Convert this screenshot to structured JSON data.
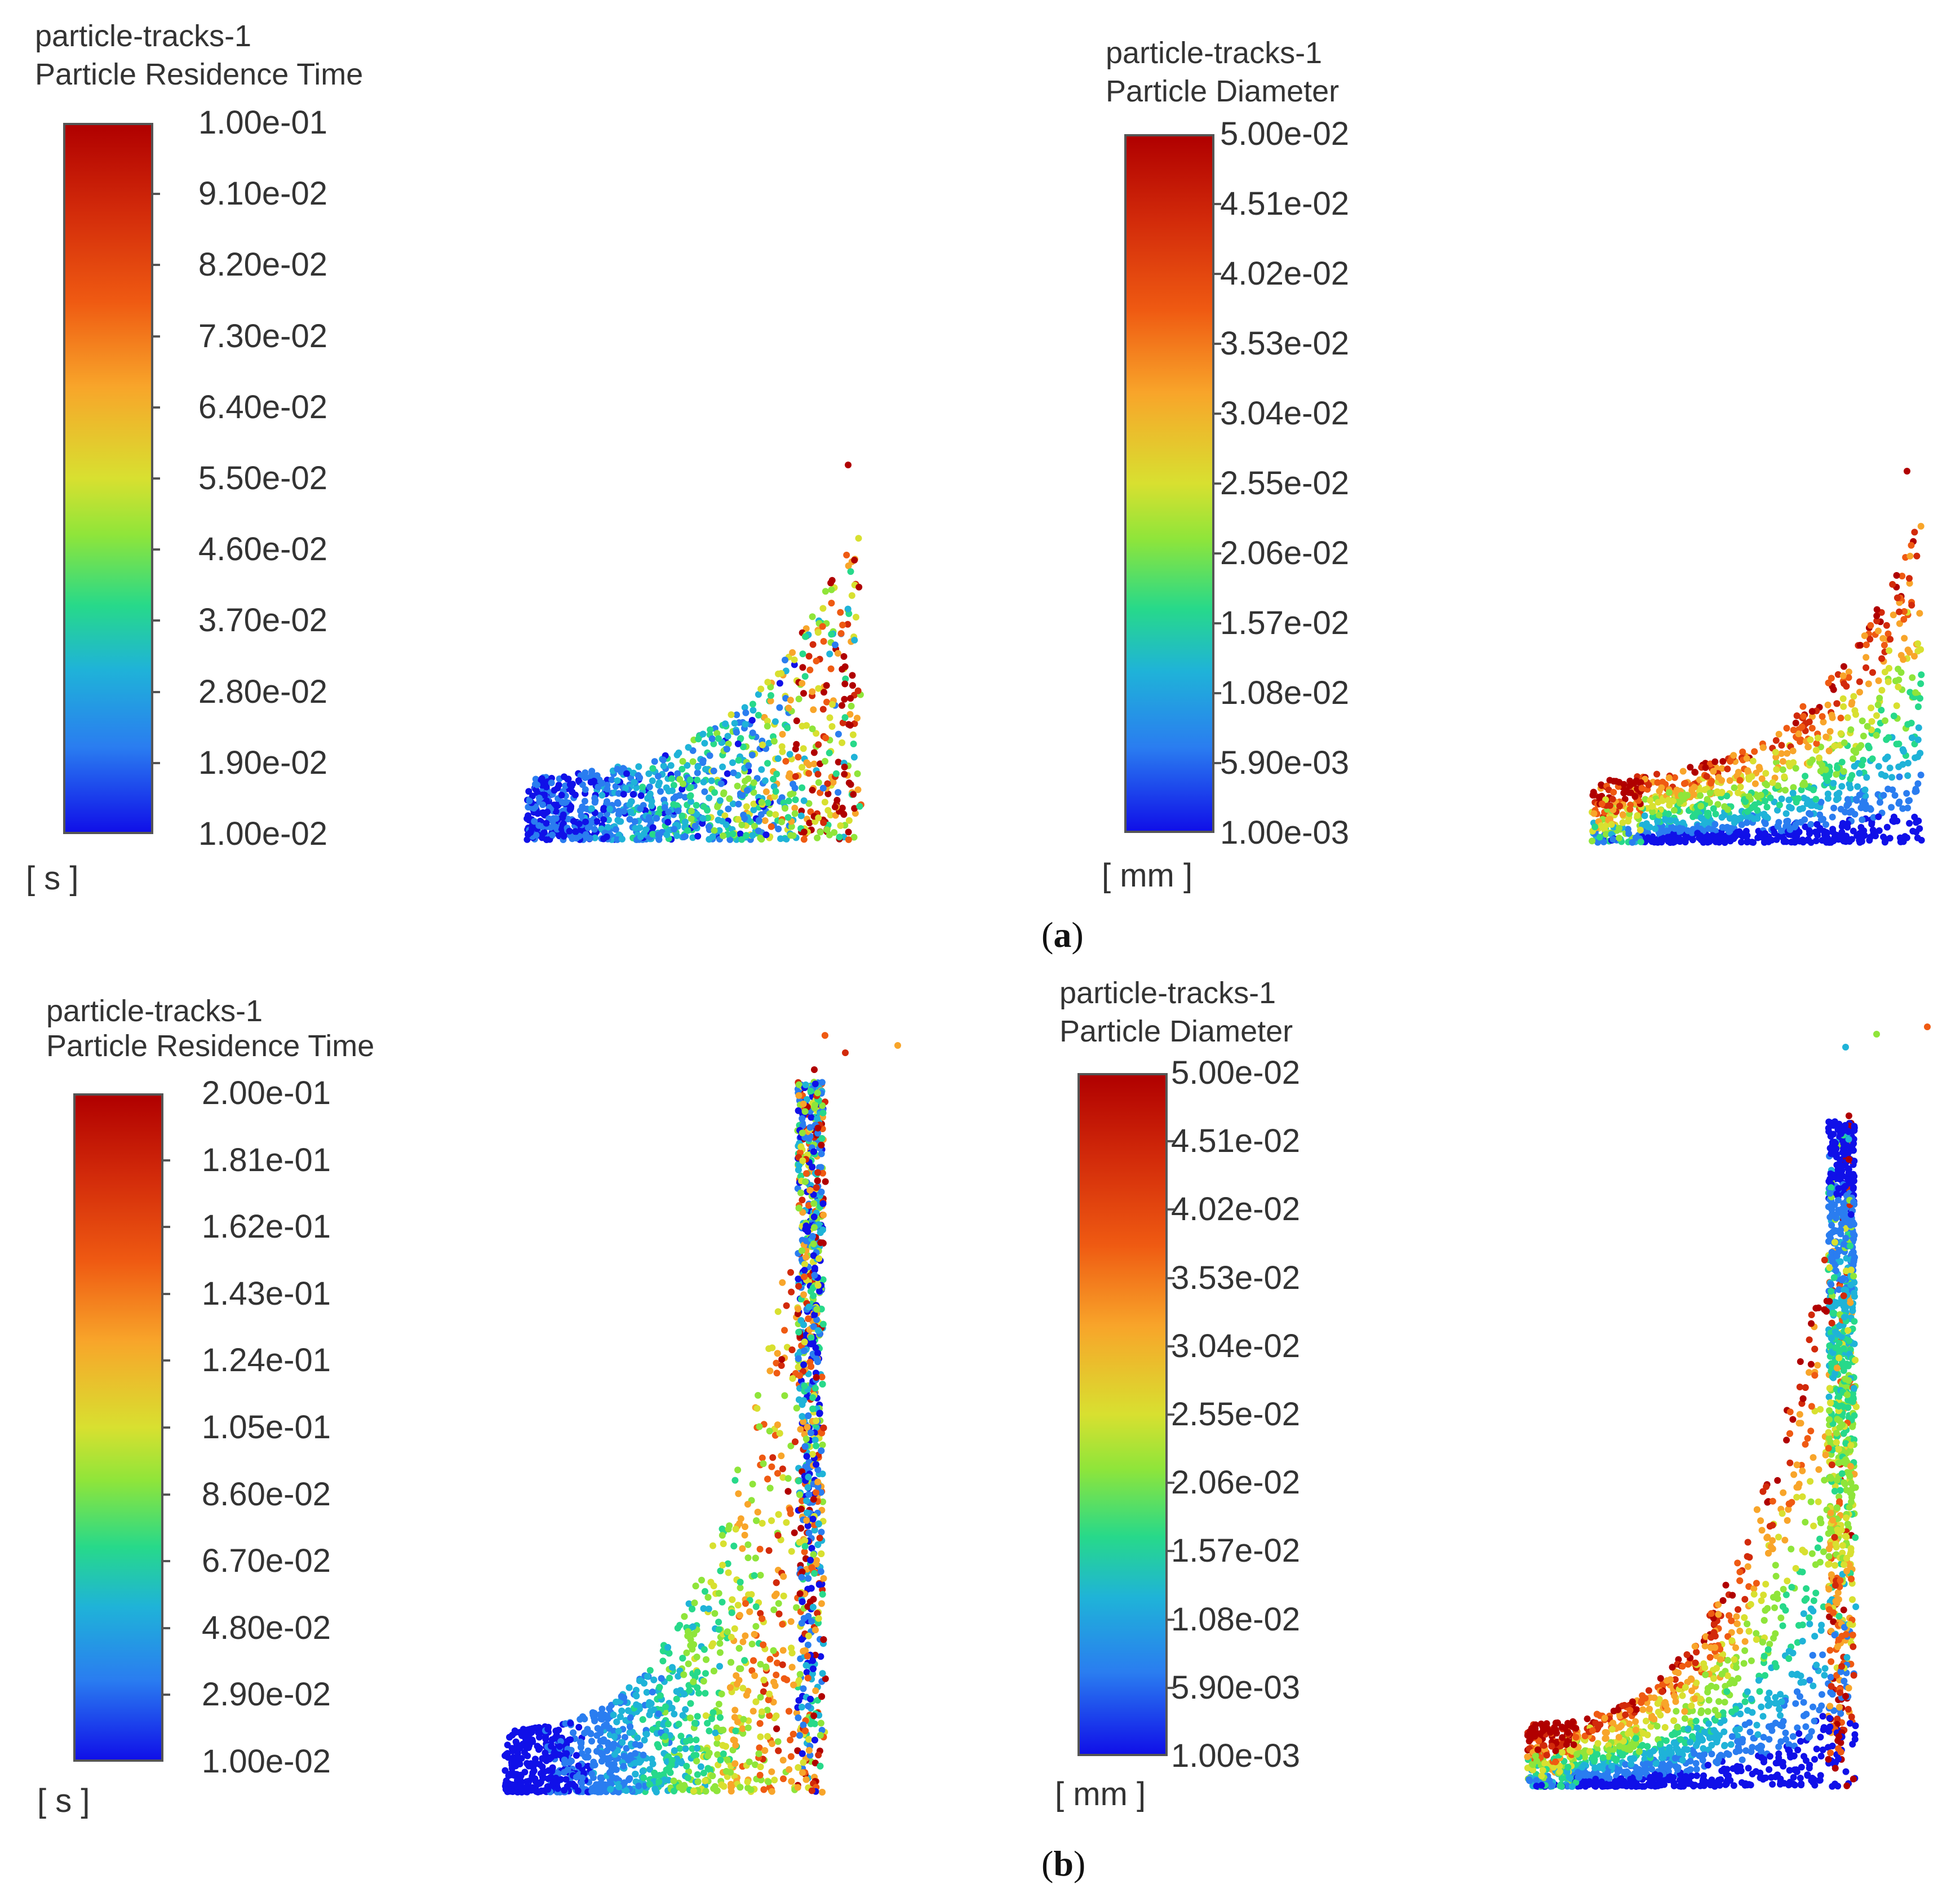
{
  "caption_a": "(a)",
  "caption_a_letter": "a",
  "caption_b_letter": "b",
  "caption_b": "(b)",
  "colors": {
    "scale": [
      "#1010e8",
      "#2a7df0",
      "#1fb3d8",
      "#27d98a",
      "#8fe53a",
      "#d8e030",
      "#f8a52a",
      "#ef5a12",
      "#d22a0a",
      "#b00000"
    ]
  },
  "chart_data": [
    {
      "type": "scatter",
      "panel": "a",
      "title_line1": "particle-tracks-1",
      "title_line2": "Particle Residence Time",
      "colorbar_ticks": [
        "1.00e-01",
        "9.10e-02",
        "8.20e-02",
        "7.30e-02",
        "6.40e-02",
        "5.50e-02",
        "4.60e-02",
        "3.70e-02",
        "2.80e-02",
        "1.90e-02",
        "1.00e-02"
      ],
      "unit": "[ s ]",
      "range": [
        0.01,
        0.1
      ],
      "coloring": "mixed"
    },
    {
      "type": "scatter",
      "panel": "a",
      "title_line1": "particle-tracks-1",
      "title_line2": "Particle Diameter",
      "colorbar_ticks": [
        "5.00e-02",
        "4.51e-02",
        "4.02e-02",
        "3.53e-02",
        "3.04e-02",
        "2.55e-02",
        "2.06e-02",
        "1.57e-02",
        "1.08e-02",
        "5.90e-03",
        "1.00e-03"
      ],
      "unit": "[ mm ]",
      "range": [
        0.001,
        0.05
      ],
      "coloring": "stratified"
    },
    {
      "type": "scatter",
      "panel": "b",
      "title_line1": "particle-tracks-1",
      "title_line2": "Particle Residence Time",
      "colorbar_ticks": [
        "2.00e-01",
        "1.81e-01",
        "1.62e-01",
        "1.43e-01",
        "1.24e-01",
        "1.05e-01",
        "8.60e-02",
        "6.70e-02",
        "4.80e-02",
        "2.90e-02",
        "1.00e-02"
      ],
      "unit": "[ s ]",
      "range": [
        0.01,
        0.2
      ],
      "coloring": "time"
    },
    {
      "type": "scatter",
      "panel": "b",
      "title_line1": "particle-tracks-1",
      "title_line2": "Particle Diameter",
      "colorbar_ticks": [
        "5.00e-02",
        "4.51e-02",
        "4.02e-02",
        "3.53e-02",
        "3.04e-02",
        "2.55e-02",
        "2.06e-02",
        "1.57e-02",
        "1.08e-02",
        "5.90e-03",
        "1.00e-03"
      ],
      "unit": "[ mm ]",
      "range": [
        0.001,
        0.05
      ],
      "coloring": "stratified"
    }
  ]
}
